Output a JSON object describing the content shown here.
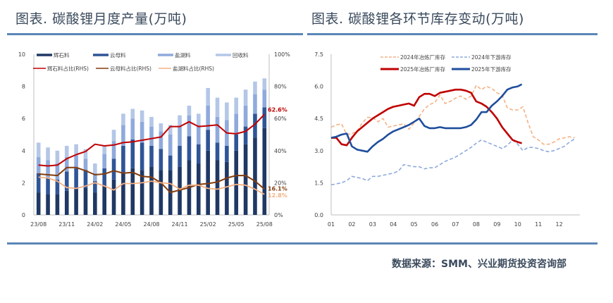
{
  "titles": {
    "left": "图表. 碳酸锂月度产量(万吨)",
    "right": "图表. 碳酸锂各环节库存变动(万吨)"
  },
  "source": "数据来源：SMM、兴业期货投资咨询部",
  "colors": {
    "rule": "#5b86b8",
    "spodumene_bar": "#1f3864",
    "lepidolite_bar": "#2f5597",
    "brine_bar": "#8faadc",
    "recycle_bar": "#b4c7e7",
    "spodumene_share": "#c00000",
    "lepidolite_share": "#843c0c",
    "brine_share": "#f4b183",
    "smelter_2024": "#f4b183",
    "downstream_2024": "#8faadc",
    "smelter_2025": "#c00000",
    "downstream_2025": "#1f4e9c"
  },
  "chart_data": [
    {
      "type": "bar",
      "title": "碳酸锂月度产量(万吨)",
      "stacked": true,
      "categories": [
        "23/08",
        "23/09",
        "23/10",
        "23/11",
        "23/12",
        "24/01",
        "24/02",
        "24/03",
        "24/04",
        "24/05",
        "24/06",
        "24/07",
        "24/08",
        "24/09",
        "24/10",
        "24/11",
        "24/12",
        "25/01",
        "25/02",
        "25/03",
        "25/04",
        "25/05",
        "25/06",
        "25/07",
        "25/08"
      ],
      "x_tick_labels": [
        "23/08",
        "23/11",
        "24/02",
        "24/05",
        "24/08",
        "24/11",
        "25/02",
        "25/05",
        "25/08"
      ],
      "y_left": {
        "min": 0,
        "max": 10,
        "ticks": [
          0,
          2,
          4,
          6,
          8,
          10
        ]
      },
      "y_right": {
        "min": 0,
        "max": 100,
        "ticks": [
          "0%",
          "20%",
          "40%",
          "60%",
          "80%",
          "100%"
        ]
      },
      "series": [
        {
          "name": "辉石料",
          "axis": "left",
          "kind": "bar",
          "values": [
            1.4,
            1.3,
            1.3,
            1.5,
            1.6,
            1.7,
            1.4,
            1.8,
            2.2,
            2.6,
            2.9,
            2.8,
            3.0,
            2.8,
            2.8,
            3.0,
            3.4,
            3.2,
            4.0,
            3.4,
            3.3,
            4.0,
            4.4,
            4.8,
            5.4
          ]
        },
        {
          "name": "云母料",
          "axis": "left",
          "kind": "bar",
          "values": [
            1.2,
            1.0,
            0.9,
            1.2,
            1.3,
            1.1,
            0.7,
            1.1,
            1.3,
            1.7,
            1.8,
            1.7,
            1.3,
            1.3,
            0.9,
            1.3,
            1.5,
            1.2,
            1.3,
            1.1,
            1.0,
            1.0,
            1.1,
            1.5,
            1.3
          ]
        },
        {
          "name": "盐湖料",
          "axis": "left",
          "kind": "bar",
          "values": [
            1.0,
            1.1,
            1.0,
            0.9,
            0.8,
            0.7,
            0.5,
            0.9,
            1.1,
            1.3,
            1.3,
            1.3,
            1.2,
            1.1,
            1.3,
            1.2,
            1.3,
            1.2,
            1.5,
            1.6,
            1.6,
            1.3,
            1.3,
            1.2,
            1.1
          ]
        },
        {
          "name": "回收料",
          "axis": "left",
          "kind": "bar",
          "values": [
            0.9,
            0.8,
            0.8,
            0.7,
            0.7,
            0.6,
            0.6,
            0.5,
            0.7,
            0.7,
            0.6,
            0.7,
            0.6,
            0.5,
            0.6,
            0.7,
            0.6,
            0.7,
            1.1,
            1.2,
            1.1,
            1.0,
            1.0,
            0.8,
            0.7
          ]
        },
        {
          "name": "辉石料占比(RHS)",
          "axis": "right",
          "kind": "line",
          "values": [
            31,
            30.5,
            31,
            35,
            37.5,
            39.5,
            44,
            43,
            43.5,
            45,
            45.5,
            46.5,
            47.5,
            48.5,
            55,
            55,
            58,
            55,
            55.5,
            56,
            51,
            50.5,
            52,
            56.5,
            62.6
          ]
        },
        {
          "name": "云母料占比(RHS)",
          "axis": "right",
          "kind": "line",
          "values": [
            25.5,
            25,
            24.5,
            29.5,
            29.5,
            27.5,
            25,
            25.5,
            27.5,
            26,
            26.5,
            24,
            23.5,
            20,
            14,
            15.5,
            17,
            19,
            19.5,
            20.5,
            23,
            24.5,
            24.5,
            21,
            16.1
          ]
        },
        {
          "name": "盐湖料占比(RHS)",
          "axis": "right",
          "kind": "line",
          "values": [
            23.5,
            23,
            21,
            17,
            16.5,
            18,
            20,
            18,
            15.5,
            19.5,
            19.5,
            20,
            21,
            20,
            19.5,
            16,
            18.5,
            18.5,
            16.5,
            16,
            17.5,
            19,
            18.5,
            16,
            12.8
          ]
        }
      ],
      "annotations": [
        {
          "text": "62.6%",
          "series": "辉石料占比(RHS)"
        },
        {
          "text": "16.1%",
          "series": "云母料占比(RHS)"
        },
        {
          "text": "12.8%",
          "series": "盐湖料占比(RHS)"
        }
      ],
      "legend": [
        "辉石料",
        "云母料",
        "盐湖料",
        "回收料",
        "辉石料占比(RHS)",
        "云母料占比(RHS)",
        "盐湖料占比(RHS)"
      ],
      "legend_position": "top",
      "grid": false
    },
    {
      "type": "line",
      "title": "碳酸锂各环节库存变动(万吨)",
      "x_tick_labels": [
        "01",
        "02",
        "03",
        "04",
        "05",
        "06",
        "07",
        "08",
        "09",
        "10",
        "11",
        "12"
      ],
      "x_range": [
        1,
        12.8
      ],
      "y": {
        "min": 0,
        "max": 7.5,
        "ticks": [
          "0.0",
          "1.5",
          "3.0",
          "4.5",
          "6.0",
          "7.5"
        ]
      },
      "series": [
        {
          "name": "2024年冶炼厂库存",
          "style": "dashed",
          "x": [
            1.0,
            1.25,
            1.5,
            1.75,
            2.0,
            2.25,
            2.5,
            2.75,
            3.0,
            3.25,
            3.5,
            3.75,
            4.0,
            4.25,
            4.5,
            4.75,
            5.0,
            5.25,
            5.5,
            5.75,
            6.0,
            6.25,
            6.5,
            6.75,
            7.0,
            7.25,
            7.5,
            7.75,
            8.0,
            8.25,
            8.5,
            8.75,
            9.0,
            9.25,
            9.5,
            9.75,
            10.0,
            10.25,
            10.5,
            10.75,
            11.0,
            11.25,
            11.5,
            11.75,
            12.0,
            12.25,
            12.5,
            12.75
          ],
          "values": [
            4.1,
            4.2,
            4.25,
            3.75,
            3.8,
            3.9,
            4.3,
            4.55,
            4.55,
            4.35,
            4.5,
            4.1,
            4.15,
            4.2,
            4.25,
            4.0,
            4.3,
            4.6,
            4.95,
            5.15,
            5.25,
            5.6,
            5.2,
            5.3,
            5.45,
            5.55,
            5.4,
            5.55,
            6.05,
            5.85,
            6.0,
            5.9,
            5.7,
            5.6,
            5.0,
            4.9,
            4.9,
            5.05,
            4.3,
            3.65,
            3.5,
            3.3,
            3.3,
            3.4,
            3.55,
            3.6,
            3.65,
            3.6
          ]
        },
        {
          "name": "2024年下游库存",
          "style": "dashed",
          "x": [
            1.0,
            1.25,
            1.5,
            1.75,
            2.0,
            2.25,
            2.5,
            2.75,
            3.0,
            3.25,
            3.5,
            3.75,
            4.0,
            4.25,
            4.5,
            4.75,
            5.0,
            5.25,
            5.5,
            5.75,
            6.0,
            6.25,
            6.5,
            6.75,
            7.0,
            7.25,
            7.5,
            7.75,
            8.0,
            8.25,
            8.5,
            8.75,
            9.0,
            9.25,
            9.5,
            9.75,
            10.0,
            10.25,
            10.5,
            10.75,
            11.0,
            11.25,
            11.5,
            11.75,
            12.0,
            12.25,
            12.5,
            12.75
          ],
          "values": [
            1.4,
            1.45,
            1.5,
            1.6,
            1.8,
            1.75,
            1.7,
            1.6,
            1.8,
            1.8,
            1.85,
            1.9,
            1.95,
            2.05,
            2.35,
            2.3,
            2.25,
            2.25,
            2.15,
            2.2,
            2.2,
            2.35,
            2.5,
            2.6,
            2.7,
            2.85,
            3.0,
            3.15,
            3.35,
            3.5,
            3.4,
            3.3,
            3.2,
            3.1,
            3.25,
            3.5,
            3.3,
            3.0,
            3.15,
            3.15,
            3.1,
            3.0,
            2.95,
            3.0,
            3.1,
            3.2,
            3.4,
            3.55
          ]
        },
        {
          "name": "2025年冶炼厂库存",
          "style": "solid",
          "x": [
            1.0,
            1.25,
            1.5,
            1.75,
            2.0,
            2.25,
            2.5,
            2.75,
            3.0,
            3.25,
            3.5,
            3.75,
            4.0,
            4.25,
            4.5,
            4.75,
            5.0,
            5.25,
            5.5,
            5.75,
            6.0,
            6.25,
            6.5,
            6.75,
            7.0,
            7.25,
            7.5,
            7.75,
            8.0,
            8.25,
            8.5,
            8.75,
            9.0,
            9.25,
            9.5,
            9.75,
            10.0,
            10.2
          ],
          "values": [
            3.6,
            3.6,
            3.3,
            3.25,
            3.6,
            3.9,
            4.1,
            4.3,
            4.5,
            4.65,
            4.8,
            4.95,
            5.05,
            5.1,
            5.15,
            5.2,
            5.1,
            5.5,
            5.65,
            5.65,
            5.55,
            5.7,
            5.75,
            5.8,
            5.85,
            5.85,
            5.8,
            5.7,
            5.3,
            5.2,
            5.05,
            4.8,
            4.5,
            4.1,
            3.8,
            3.5,
            3.4,
            3.35
          ]
        },
        {
          "name": "2025年下游库存",
          "style": "solid",
          "x": [
            1.0,
            1.25,
            1.5,
            1.75,
            2.0,
            2.25,
            2.5,
            2.75,
            3.0,
            3.25,
            3.5,
            3.75,
            4.0,
            4.25,
            4.5,
            4.75,
            5.0,
            5.25,
            5.5,
            5.75,
            6.0,
            6.25,
            6.5,
            6.75,
            7.0,
            7.25,
            7.5,
            7.75,
            8.0,
            8.25,
            8.5,
            8.75,
            9.0,
            9.25,
            9.5,
            9.75,
            10.0,
            10.2
          ],
          "values": [
            3.6,
            3.65,
            3.75,
            3.8,
            3.2,
            3.05,
            3.0,
            2.95,
            3.2,
            3.4,
            3.55,
            3.75,
            3.9,
            4.0,
            4.1,
            4.2,
            4.35,
            4.5,
            4.15,
            4.05,
            4.05,
            4.1,
            4.05,
            4.05,
            4.05,
            4.05,
            4.1,
            4.2,
            4.45,
            4.8,
            4.8,
            5.1,
            5.3,
            5.55,
            5.85,
            5.95,
            6.0,
            6.1
          ]
        }
      ],
      "legend": [
        "2024年冶炼厂库存",
        "2024年下游库存",
        "2025年冶炼厂库存",
        "2025年下游库存"
      ],
      "legend_position": "top",
      "grid": false
    }
  ]
}
